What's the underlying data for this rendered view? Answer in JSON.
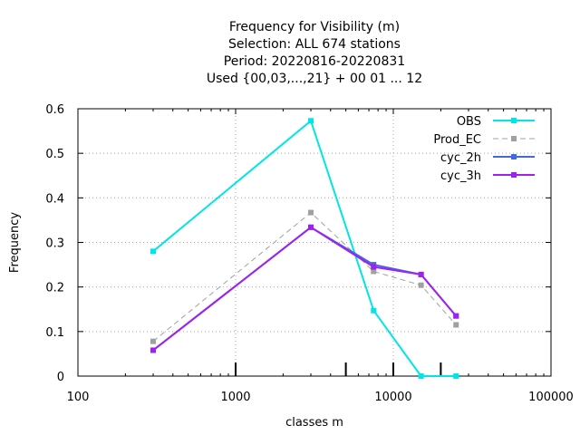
{
  "chart_data": {
    "type": "line",
    "title_lines": [
      "Frequency  for Visibility (m)",
      "Selection: ALL    674 stations",
      "Period: 20220816-20220831",
      "Used {00,03,...,21} + 00 01 ... 12"
    ],
    "xlabel": "classes m",
    "ylabel": "Frequency",
    "xscale": "log",
    "xlim": [
      100,
      100000
    ],
    "ylim": [
      0,
      0.6
    ],
    "xticks": [
      100,
      1000,
      10000,
      100000
    ],
    "xtick_labels": [
      "100",
      "1000",
      "10000",
      "100000"
    ],
    "yticks": [
      0,
      0.1,
      0.2,
      0.3,
      0.4,
      0.5,
      0.6
    ],
    "ytick_labels": [
      "0",
      "0.1",
      "0.2",
      "0.3",
      "0.4",
      "0.5",
      "0.6"
    ],
    "grid": true,
    "legend_position": "top-right",
    "class_markers_x": [
      1000,
      5000,
      10000,
      20000
    ],
    "series": [
      {
        "name": "OBS",
        "color": "#00e5e5",
        "dashed": false,
        "x": [
          300,
          3000,
          7500,
          15000,
          25000
        ],
        "y": [
          0.28,
          0.573,
          0.147,
          0.0,
          0.0
        ]
      },
      {
        "name": "Prod_EC",
        "color": "#a0a0a0",
        "dashed": true,
        "x": [
          300,
          3000,
          7500,
          15000,
          25000
        ],
        "y": [
          0.078,
          0.367,
          0.235,
          0.204,
          0.115
        ]
      },
      {
        "name": "cyc_2h",
        "color": "#4169e1",
        "dashed": false,
        "x": [
          300,
          3000,
          7500,
          15000,
          25000
        ],
        "y": [
          0.058,
          0.334,
          0.25,
          0.228,
          0.135
        ]
      },
      {
        "name": "cyc_3h",
        "color": "#a020f0",
        "dashed": false,
        "x": [
          300,
          3000,
          7500,
          15000,
          25000
        ],
        "y": [
          0.058,
          0.334,
          0.245,
          0.228,
          0.135
        ]
      }
    ]
  }
}
